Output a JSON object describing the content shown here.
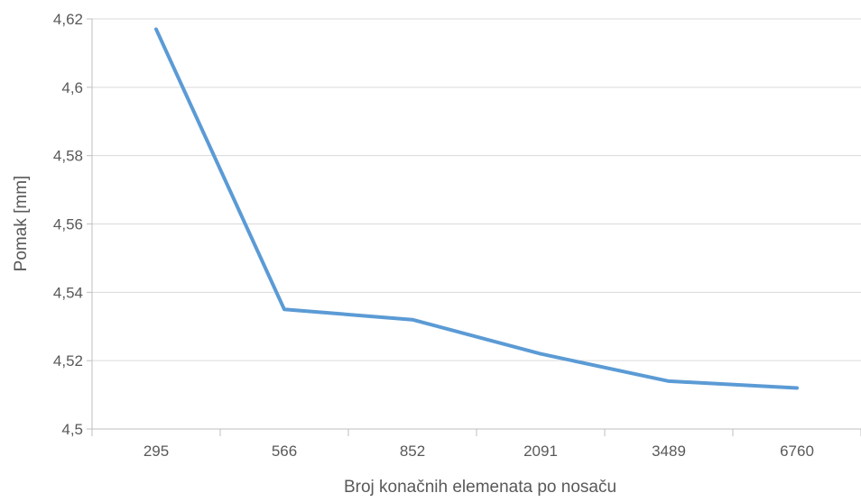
{
  "chart_data": {
    "type": "line",
    "categories": [
      "295",
      "566",
      "852",
      "2091",
      "3489",
      "6760"
    ],
    "series": [
      {
        "values": [
          4.617,
          4.535,
          4.532,
          4.522,
          4.514,
          4.512
        ]
      }
    ],
    "xlabel": "Broj konačnih elemenata po nosaču",
    "ylabel": "Pomak [mm]",
    "ylim": [
      4.5,
      4.62
    ],
    "yticks": [
      4.5,
      4.52,
      4.54,
      4.56,
      4.58,
      4.6,
      4.62
    ],
    "ytick_labels": [
      "4,5",
      "4,52",
      "4,54",
      "4,56",
      "4,58",
      "4,6",
      "4,62"
    ],
    "grid": "horizontal",
    "line_color": "#5b9bd5",
    "grid_color": "#d9d9d9",
    "axis_color": "#bfbfbf",
    "text_color": "#595959"
  }
}
